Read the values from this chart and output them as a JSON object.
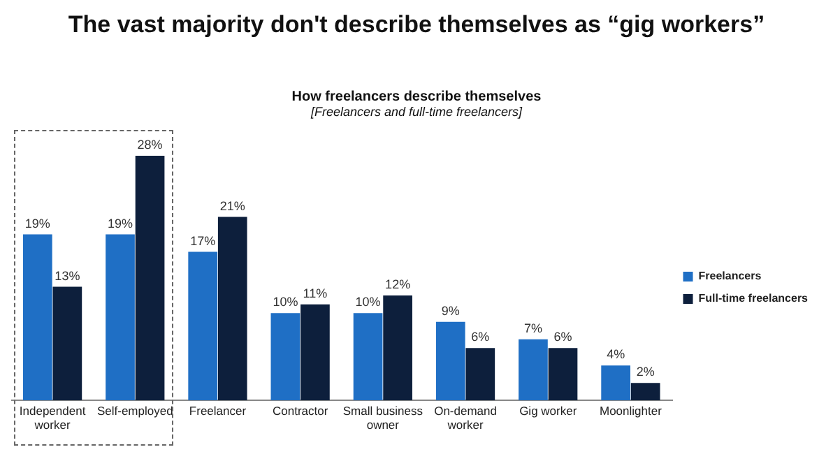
{
  "chart_data": {
    "type": "bar",
    "title": "The vast majority don't describe themselves as “gig workers”",
    "subtitle": "How freelancers describe themselves",
    "annotations": [
      "[Freelancers and full-time freelancers]"
    ],
    "categories": [
      "Independent worker",
      "Self-employed",
      "Freelancer",
      "Contractor",
      "Small business owner",
      "On-demand worker",
      "Gig worker",
      "Moonlighter"
    ],
    "series": [
      {
        "name": "Freelancers",
        "color": "#1f6fc5",
        "values": [
          19,
          19,
          17,
          10,
          10,
          9,
          7,
          4
        ],
        "value_labels": [
          "19%",
          "19%",
          "17%",
          "10%",
          "10%",
          "9%",
          "7%",
          "4%"
        ]
      },
      {
        "name": "Full-time freelancers",
        "color": "#0d1f3c",
        "values": [
          13,
          28,
          21,
          11,
          12,
          6,
          6,
          2
        ],
        "value_labels": [
          "13%",
          "28%",
          "21%",
          "11%",
          "12%",
          "6%",
          "6%",
          "2%"
        ]
      }
    ],
    "legend": "right",
    "grid": false
  }
}
